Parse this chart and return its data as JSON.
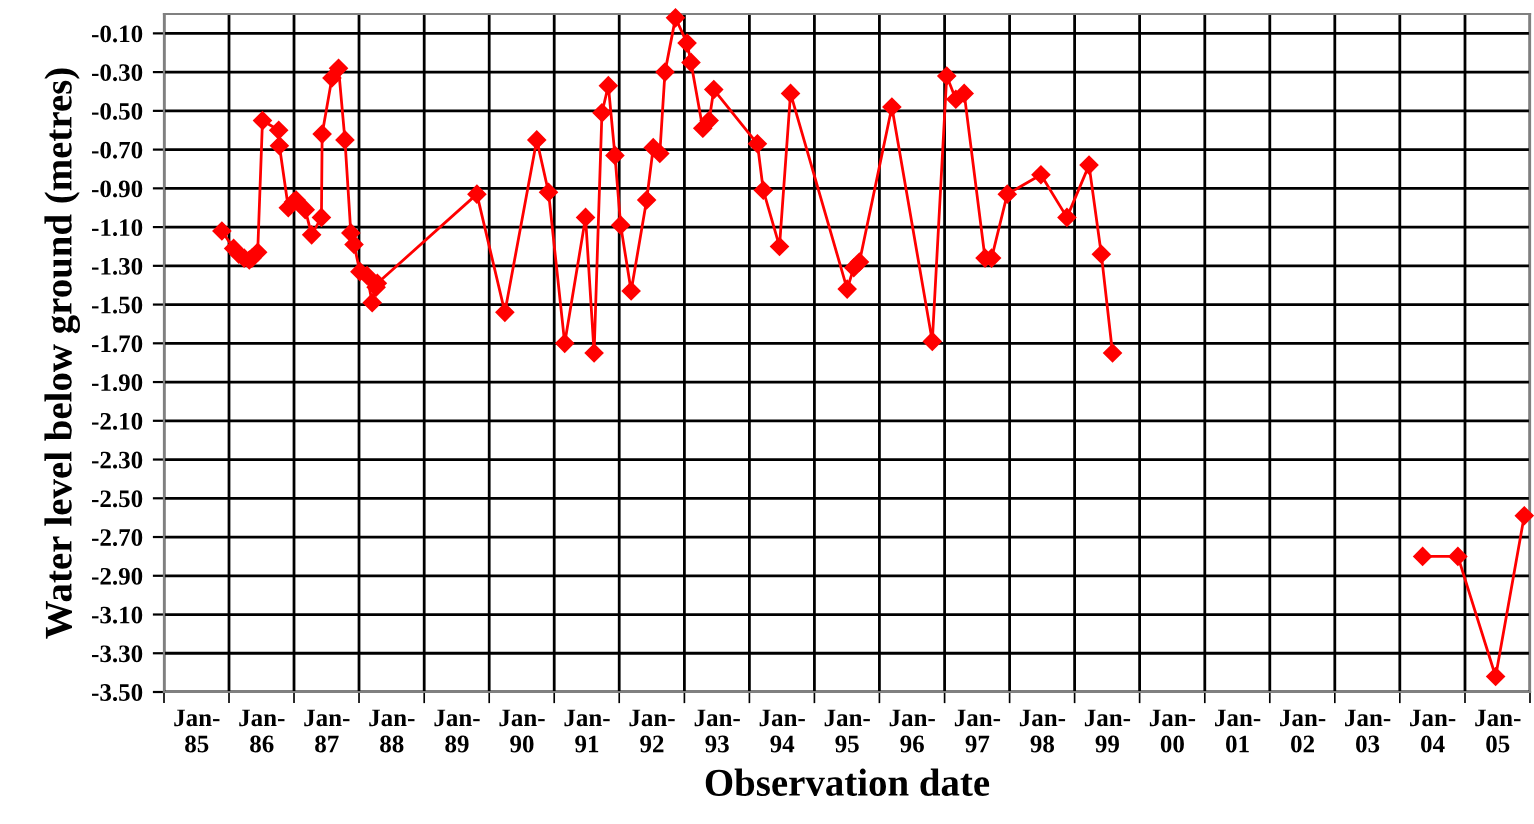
{
  "chart_data": {
    "type": "line",
    "xlabel": "Observation date",
    "ylabel": "Water level below ground (metres)",
    "x": [
      "1985-05-22",
      "1985-07-27",
      "1985-08-25",
      "1985-09-24",
      "1985-10-23",
      "1985-11-07",
      "1985-12-09",
      "1986-01-05",
      "1986-04-06",
      "1986-04-10",
      "1986-05-30",
      "1986-06-28",
      "1986-07-13",
      "1986-09-02",
      "1986-10-08",
      "1986-12-02",
      "1986-12-06",
      "1987-01-30",
      "1987-03-08",
      "1987-04-13",
      "1987-05-16",
      "1987-06-03",
      "1987-07-06",
      "1987-08-15",
      "1987-09-13",
      "1987-10-05",
      "1987-10-12",
      "1989-04-23",
      "1989-09-27",
      "1990-03-25",
      "1990-05-30",
      "1990-08-29",
      "1990-12-24",
      "1991-02-10",
      "1991-03-26",
      "1991-05-01",
      "1991-06-07",
      "1991-07-09",
      "1991-09-06",
      "1991-12-02",
      "1992-01-08",
      "1992-02-14",
      "1992-03-14",
      "1992-05-12",
      "1992-07-16",
      "1992-08-07",
      "1992-10-12",
      "1992-11-17",
      "1992-12-13",
      "1993-08-15",
      "1993-09-17",
      "1993-12-17",
      "1994-02-17",
      "1995-01-01",
      "1995-02-07",
      "1995-03-11",
      "1995-09-09",
      "1996-04-23",
      "1996-07-13",
      "1996-09-02",
      "1996-10-19",
      "1997-02-13",
      "1997-03-22",
      "1997-06-18",
      "1997-12-24",
      "1998-05-19",
      "1998-09-20",
      "1998-11-28",
      "1999-01-30",
      "2001-06-01",
      "2003-11-06",
      "2004-05-22",
      "2004-12-20",
      "2005-05-30"
    ],
    "series": [
      {
        "color": "#ff0000",
        "values": [
          -1.12,
          -1.21,
          -1.24,
          -1.26,
          -1.27,
          -1.26,
          -1.23,
          -0.55,
          -0.6,
          -0.68,
          -1.0,
          -0.97,
          -0.96,
          -1.01,
          -1.14,
          -1.05,
          -0.62,
          -0.33,
          -0.28,
          -0.65,
          -1.13,
          -1.19,
          -1.33,
          -1.35,
          -1.49,
          -1.41,
          -1.39,
          -0.93,
          -1.54,
          -0.65,
          -0.92,
          -1.7,
          -1.05,
          -1.75,
          -0.51,
          -0.37,
          -0.73,
          -1.09,
          -1.43,
          -0.96,
          -0.69,
          -0.72,
          -0.3,
          -0.02,
          -0.15,
          -0.25,
          -0.59,
          -0.55,
          -0.39,
          -0.67,
          -0.91,
          -1.2,
          -0.41,
          -1.42,
          -1.31,
          -1.28,
          -0.48,
          -1.69,
          -0.32,
          -0.44,
          -0.41,
          -1.26,
          -1.26,
          -0.93,
          -0.83,
          -1.05,
          -0.78,
          -1.24,
          -1.75,
          null,
          -2.8,
          -2.8,
          -3.42,
          -2.59
        ]
      }
    ],
    "marker": "diamond",
    "line_style": "solid",
    "grid": true,
    "xlim": [
      "1984-07-01",
      "2005-07-01"
    ],
    "xticks": [
      {
        "value": "1984-07-01",
        "label": null
      },
      {
        "value": "1985-01-01",
        "label": "Jan-\n85"
      },
      {
        "value": "1985-07-01",
        "label": null
      },
      {
        "value": "1986-01-01",
        "label": "Jan-\n86"
      },
      {
        "value": "1986-07-01",
        "label": null
      },
      {
        "value": "1987-01-01",
        "label": "Jan-\n87"
      },
      {
        "value": "1987-07-01",
        "label": null
      },
      {
        "value": "1988-01-01",
        "label": "Jan-\n88"
      },
      {
        "value": "1988-07-01",
        "label": null
      },
      {
        "value": "1989-01-01",
        "label": "Jan-\n89"
      },
      {
        "value": "1989-07-01",
        "label": null
      },
      {
        "value": "1990-01-01",
        "label": "Jan-\n90"
      },
      {
        "value": "1990-07-01",
        "label": null
      },
      {
        "value": "1991-01-01",
        "label": "Jan-\n91"
      },
      {
        "value": "1991-07-01",
        "label": null
      },
      {
        "value": "1992-01-01",
        "label": "Jan-\n92"
      },
      {
        "value": "1992-07-01",
        "label": null
      },
      {
        "value": "1993-01-01",
        "label": "Jan-\n93"
      },
      {
        "value": "1993-07-01",
        "label": null
      },
      {
        "value": "1994-01-01",
        "label": "Jan-\n94"
      },
      {
        "value": "1994-07-01",
        "label": null
      },
      {
        "value": "1995-01-01",
        "label": "Jan-\n95"
      },
      {
        "value": "1995-07-01",
        "label": null
      },
      {
        "value": "1996-01-01",
        "label": "Jan-\n96"
      },
      {
        "value": "1996-07-01",
        "label": null
      },
      {
        "value": "1997-01-01",
        "label": "Jan-\n97"
      },
      {
        "value": "1997-07-01",
        "label": null
      },
      {
        "value": "1998-01-01",
        "label": "Jan-\n98"
      },
      {
        "value": "1998-07-01",
        "label": null
      },
      {
        "value": "1999-01-01",
        "label": "Jan-\n99"
      },
      {
        "value": "1999-07-01",
        "label": null
      },
      {
        "value": "2000-01-01",
        "label": "Jan-\n00"
      },
      {
        "value": "2000-07-01",
        "label": null
      },
      {
        "value": "2001-01-01",
        "label": "Jan-\n01"
      },
      {
        "value": "2001-07-01",
        "label": null
      },
      {
        "value": "2002-01-01",
        "label": "Jan-\n02"
      },
      {
        "value": "2002-07-01",
        "label": null
      },
      {
        "value": "2003-01-01",
        "label": "Jan-\n03"
      },
      {
        "value": "2003-07-01",
        "label": null
      },
      {
        "value": "2004-01-01",
        "label": "Jan-\n04"
      },
      {
        "value": "2004-07-01",
        "label": null
      },
      {
        "value": "2005-01-01",
        "label": "Jan-\n05"
      },
      {
        "value": "2005-07-01",
        "label": null
      }
    ],
    "ylim": [
      -3.5,
      0.0
    ],
    "yticks": [
      {
        "value": -0.1,
        "label": "-0.10"
      },
      {
        "value": -0.3,
        "label": "-0.30"
      },
      {
        "value": -0.5,
        "label": "-0.50"
      },
      {
        "value": -0.7,
        "label": "-0.70"
      },
      {
        "value": -0.9,
        "label": "-0.90"
      },
      {
        "value": -1.1,
        "label": "-1.10"
      },
      {
        "value": -1.3,
        "label": "-1.30"
      },
      {
        "value": -1.5,
        "label": "-1.50"
      },
      {
        "value": -1.7,
        "label": "-1.70"
      },
      {
        "value": -1.9,
        "label": "-1.90"
      },
      {
        "value": -2.1,
        "label": "-2.10"
      },
      {
        "value": -2.3,
        "label": "-2.30"
      },
      {
        "value": -2.5,
        "label": "-2.50"
      },
      {
        "value": -2.7,
        "label": "-2.70"
      },
      {
        "value": -2.9,
        "label": "-2.90"
      },
      {
        "value": -3.1,
        "label": "-3.10"
      },
      {
        "value": -3.3,
        "label": "-3.30"
      },
      {
        "value": -3.5,
        "label": "-3.50"
      }
    ]
  }
}
